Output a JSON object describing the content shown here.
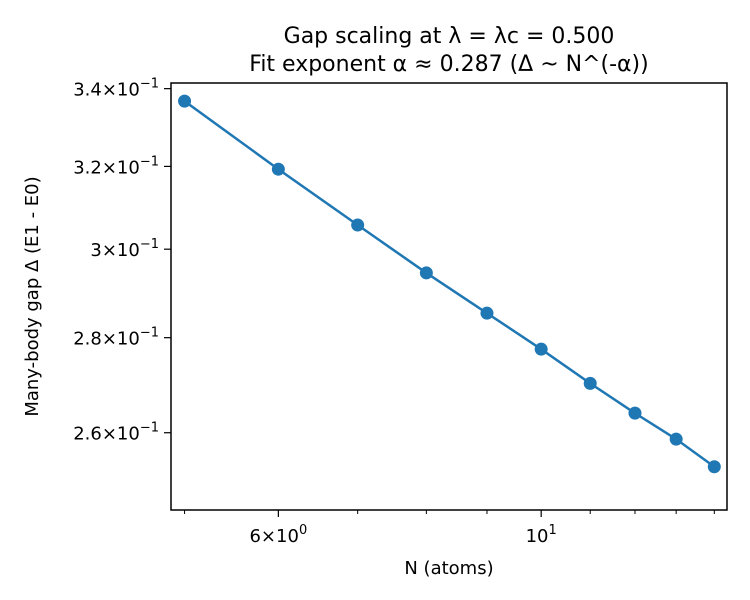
{
  "chart_data": {
    "type": "line",
    "title": "Gap scaling at λ = λc = 0.500",
    "subtitle": "Fit exponent α ≈ 0.287 (Δ ~ N^(-α))",
    "xlabel": "N (atoms)",
    "ylabel": "Many-body gap Δ (E1 - E0)",
    "x_scale": "log",
    "y_scale": "log",
    "xlim": [
      4.87,
      14.35
    ],
    "ylim": [
      0.2448,
      0.3415
    ],
    "x_major_ticks": [
      {
        "value": 6,
        "mantissa": "6",
        "base": "10",
        "exp": "0"
      },
      {
        "value": 10,
        "mantissa": "",
        "base": "10",
        "exp": "1"
      }
    ],
    "x_minor_ticks": [
      5,
      7,
      8,
      9,
      11,
      12,
      13,
      14
    ],
    "y_major_ticks": [
      {
        "value": 0.26,
        "mantissa": "2.6",
        "base": "10",
        "exp": "−1"
      },
      {
        "value": 0.28,
        "mantissa": "2.8",
        "base": "10",
        "exp": "−1"
      },
      {
        "value": 0.3,
        "mantissa": "3",
        "base": "10",
        "exp": "−1"
      },
      {
        "value": 0.32,
        "mantissa": "3.2",
        "base": "10",
        "exp": "−1"
      },
      {
        "value": 0.34,
        "mantissa": "3.4",
        "base": "10",
        "exp": "−1"
      }
    ],
    "grid": false,
    "legend": "none",
    "color": "#1f77b4",
    "series": [
      {
        "x": [
          5,
          6,
          7,
          8,
          9,
          10,
          11,
          12,
          13,
          14
        ],
        "y": [
          0.3367,
          0.3193,
          0.3057,
          0.2945,
          0.2854,
          0.2775,
          0.2702,
          0.264,
          0.2587,
          0.2532
        ]
      }
    ]
  }
}
